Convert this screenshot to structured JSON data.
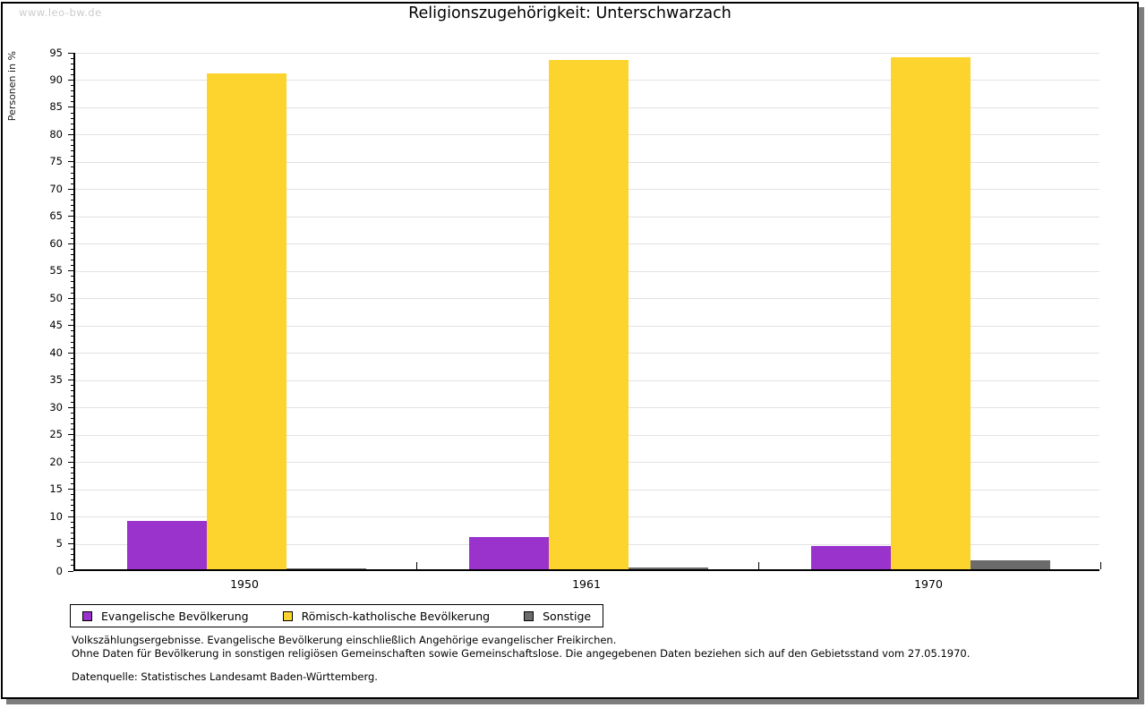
{
  "watermark": "www.leo-bw.de",
  "title": "Religionszugehörigkeit: Unterschwarzach",
  "chart_data": {
    "type": "bar",
    "title": "Religionszugehörigkeit: Unterschwarzach",
    "categories": [
      "1950",
      "1961",
      "1970"
    ],
    "series": [
      {
        "name": "Evangelische Bevölkerung",
        "color": "#9933cc",
        "values": [
          8.8,
          5.9,
          4.3
        ]
      },
      {
        "name": "Römisch-katholische Bevölkerung",
        "color": "#fdd42d",
        "values": [
          90.9,
          93.4,
          93.9
        ]
      },
      {
        "name": "Sonstige",
        "color": "#6b6b6b",
        "values": [
          0.1,
          0.3,
          1.7
        ]
      }
    ],
    "xlabel": "",
    "ylabel": "Personen in %",
    "ylim": [
      0,
      95
    ],
    "ytick_step": 5,
    "yminor_step": 1,
    "grid": true,
    "gridline_color": "#e2e2e2",
    "legend_position": "bottom-left"
  },
  "footnotes": {
    "line1": "Volkszählungsergebnisse. Evangelische Bevölkerung einschließlich Angehörige evangelischer Freikirchen.",
    "line2": "Ohne Daten für Bevölkerung in sonstigen religiösen Gemeinschaften sowie Gemeinschaftslose. Die angegebenen Daten beziehen sich auf den Gebietsstand vom 27.05.1970.",
    "source": "Datenquelle: Statistisches Landesamt Baden-Württemberg."
  }
}
